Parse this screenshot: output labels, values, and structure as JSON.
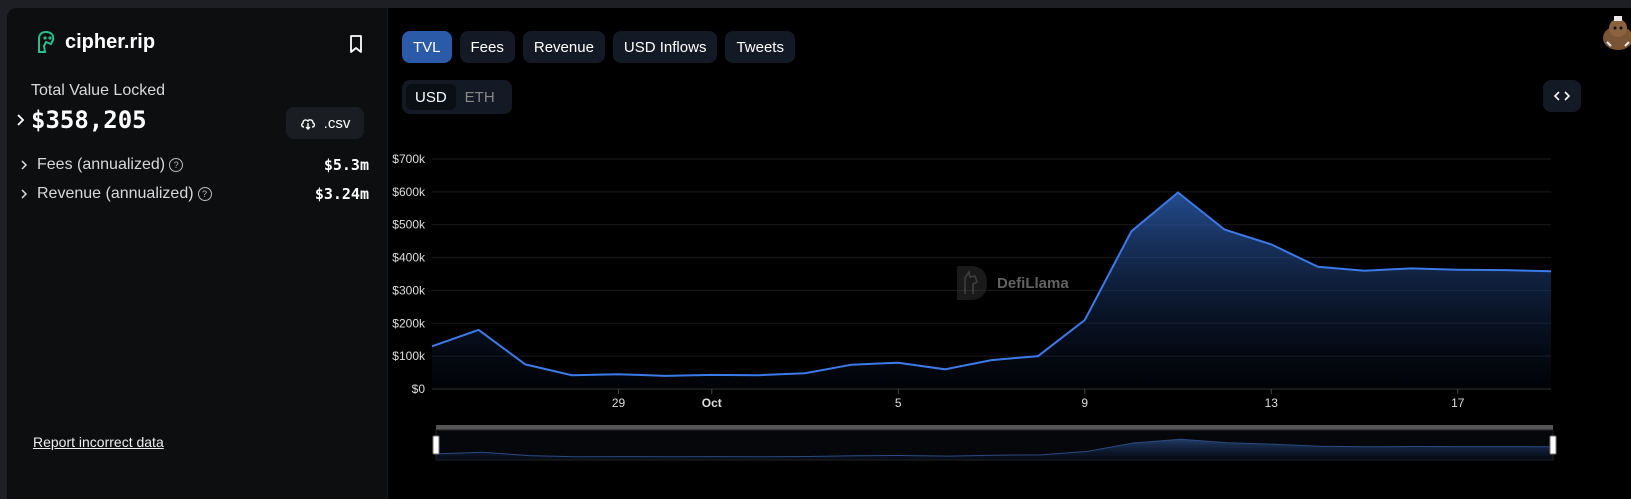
{
  "sidebar": {
    "title": "cipher.rip",
    "tvl_label": "Total Value Locked",
    "tvl_value": "$358,205",
    "csv_label": ".csv",
    "metrics": [
      {
        "label": "Fees (annualized)",
        "value": "$5.3m"
      },
      {
        "label": "Revenue (annualized)",
        "value": "$3.24m"
      }
    ],
    "report_link": "Report incorrect data"
  },
  "tabs": [
    "TVL",
    "Fees",
    "Revenue",
    "USD Inflows",
    "Tweets"
  ],
  "active_tab": "TVL",
  "units": [
    "USD",
    "ETH"
  ],
  "active_unit": "USD",
  "watermark": "DefiLlama",
  "colors": {
    "accent": "#2b5aa8",
    "line": "#3b7ae8",
    "brand_icon": "#27c08a"
  },
  "icons": {
    "brand": "ghost-icon",
    "bookmark": "bookmark-icon",
    "csv": "cloud-download-icon",
    "embed": "code-icon",
    "avatar": "llama-avatar-icon"
  },
  "chart_data": {
    "type": "area",
    "y_ticks": [
      "$0",
      "$100k",
      "$200k",
      "$300k",
      "$400k",
      "$500k",
      "$600k",
      "$700k"
    ],
    "ylim": [
      0,
      700000
    ],
    "x_ticks": [
      "29",
      "Oct",
      "5",
      "9",
      "13",
      "17"
    ],
    "x_tick_day_index": [
      4,
      6,
      10,
      14,
      18,
      22
    ],
    "series": [
      {
        "values": [
          130000,
          180000,
          75000,
          42000,
          45000,
          40000,
          43000,
          42000,
          48000,
          74000,
          80000,
          60000,
          88000,
          100000,
          210000,
          480000,
          598000,
          485000,
          440000,
          372000,
          360000,
          367000,
          363000,
          362000,
          358205
        ]
      }
    ],
    "grid": true
  }
}
